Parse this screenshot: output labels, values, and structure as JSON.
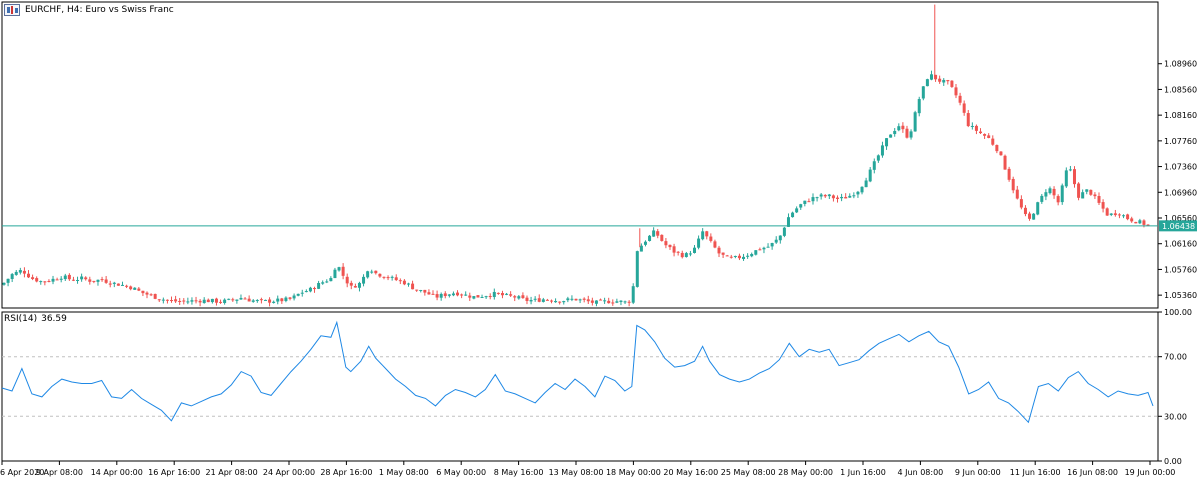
{
  "header": {
    "title": "EURCHF, H4:  Euro vs Swiss Franc"
  },
  "current_price_label": "1.06438",
  "rsi": {
    "name": "RSI(14)",
    "value": "36.59"
  },
  "colors": {
    "bull": "#26a69a",
    "bear": "#ef5350",
    "rsi_line": "#1e88e5",
    "price_line": "#26a69a",
    "frame": "#000000",
    "grid_dash": "#c0c0c0"
  },
  "chart_data": [
    {
      "type": "candlestick",
      "title": "EURCHF, H4:  Euro vs Swiss Franc",
      "ylim": [
        1.0516,
        1.0992
      ],
      "yticks": [
        "1.08960",
        "1.08560",
        "1.08160",
        "1.07760",
        "1.07360",
        "1.06960",
        "1.06560",
        "1.06160",
        "1.05760",
        "1.05360"
      ],
      "current_price": 1.06438,
      "xticks": [
        "6 Apr 2020",
        "9 Apr 08:00",
        "14 Apr 00:00",
        "16 Apr 16:00",
        "21 Apr 08:00",
        "24 Apr 00:00",
        "28 Apr 16:00",
        "1 May 08:00",
        "6 May 00:00",
        "8 May 16:00",
        "13 May 08:00",
        "18 May 00:00",
        "20 May 16:00",
        "25 May 08:00",
        "28 May 00:00",
        "1 Jun 16:00",
        "4 Jun 08:00",
        "9 Jun 00:00",
        "11 Jun 16:00",
        "16 Jun 08:00",
        "19 Jun 00:00"
      ],
      "close_path": [
        [
          0,
          1.0552
        ],
        [
          10,
          1.0568
        ],
        [
          20,
          1.0575
        ],
        [
          30,
          1.0562
        ],
        [
          40,
          1.0557
        ],
        [
          50,
          1.056
        ],
        [
          60,
          1.0565
        ],
        [
          70,
          1.056
        ],
        [
          80,
          1.0562
        ],
        [
          90,
          1.0558
        ],
        [
          100,
          1.056
        ],
        [
          110,
          1.0555
        ],
        [
          120,
          1.0552
        ],
        [
          130,
          1.0548
        ],
        [
          140,
          1.054
        ],
        [
          150,
          1.0535
        ],
        [
          160,
          1.053
        ],
        [
          170,
          1.0527
        ],
        [
          180,
          1.0526
        ],
        [
          190,
          1.0527
        ],
        [
          200,
          1.0528
        ],
        [
          210,
          1.0527
        ],
        [
          220,
          1.0526
        ],
        [
          230,
          1.0528
        ],
        [
          240,
          1.0532
        ],
        [
          250,
          1.0528
        ],
        [
          260,
          1.0526
        ],
        [
          270,
          1.0527
        ],
        [
          280,
          1.0528
        ],
        [
          290,
          1.053
        ],
        [
          300,
          1.054
        ],
        [
          310,
          1.0545
        ],
        [
          320,
          1.0555
        ],
        [
          330,
          1.0562
        ],
        [
          336,
          1.0587
        ],
        [
          340,
          1.0572
        ],
        [
          345,
          1.056
        ],
        [
          350,
          1.0548
        ],
        [
          360,
          1.0555
        ],
        [
          368,
          1.058
        ],
        [
          375,
          1.057
        ],
        [
          385,
          1.0565
        ],
        [
          395,
          1.056
        ],
        [
          405,
          1.0555
        ],
        [
          415,
          1.0545
        ],
        [
          425,
          1.054
        ],
        [
          435,
          1.0533
        ],
        [
          445,
          1.0537
        ],
        [
          455,
          1.054
        ],
        [
          465,
          1.0536
        ],
        [
          475,
          1.0533
        ],
        [
          485,
          1.0536
        ],
        [
          495,
          1.0538
        ],
        [
          505,
          1.0535
        ],
        [
          515,
          1.0533
        ],
        [
          525,
          1.0528
        ],
        [
          535,
          1.0528
        ],
        [
          545,
          1.053
        ],
        [
          555,
          1.0528
        ],
        [
          565,
          1.0528
        ],
        [
          575,
          1.053
        ],
        [
          585,
          1.0527
        ],
        [
          595,
          1.0524
        ],
        [
          605,
          1.0526
        ],
        [
          615,
          1.0527
        ],
        [
          625,
          1.0525
        ],
        [
          632,
          1.0528
        ],
        [
          637,
          1.0605
        ],
        [
          645,
          1.062
        ],
        [
          655,
          1.0635
        ],
        [
          665,
          1.0615
        ],
        [
          675,
          1.0603
        ],
        [
          685,
          1.0597
        ],
        [
          695,
          1.0608
        ],
        [
          703,
          1.0635
        ],
        [
          710,
          1.062
        ],
        [
          720,
          1.06
        ],
        [
          730,
          1.0592
        ],
        [
          740,
          1.0595
        ],
        [
          750,
          1.06
        ],
        [
          760,
          1.0608
        ],
        [
          770,
          1.0612
        ],
        [
          780,
          1.0625
        ],
        [
          790,
          1.066
        ],
        [
          800,
          1.0675
        ],
        [
          810,
          1.0685
        ],
        [
          820,
          1.069
        ],
        [
          830,
          1.069
        ],
        [
          840,
          1.0685
        ],
        [
          850,
          1.069
        ],
        [
          860,
          1.07
        ],
        [
          870,
          1.0725
        ],
        [
          880,
          1.0755
        ],
        [
          890,
          1.0785
        ],
        [
          900,
          1.08
        ],
        [
          910,
          1.078
        ],
        [
          920,
          1.084
        ],
        [
          930,
          1.088
        ],
        [
          940,
          1.087
        ],
        [
          950,
          1.0865
        ],
        [
          960,
          1.084
        ],
        [
          970,
          1.08
        ],
        [
          980,
          1.079
        ],
        [
          990,
          1.078
        ],
        [
          1000,
          1.076
        ],
        [
          1010,
          1.072
        ],
        [
          1020,
          1.068
        ],
        [
          1030,
          1.065
        ],
        [
          1040,
          1.068
        ],
        [
          1050,
          1.0705
        ],
        [
          1060,
          1.068
        ],
        [
          1070,
          1.074
        ],
        [
          1080,
          1.069
        ],
        [
          1090,
          1.07
        ],
        [
          1100,
          1.068
        ],
        [
          1110,
          1.066
        ],
        [
          1120,
          1.0665
        ],
        [
          1130,
          1.0655
        ],
        [
          1140,
          1.065
        ],
        [
          1150,
          1.0645
        ],
        [
          1155,
          1.0643
        ]
      ]
    },
    {
      "type": "line",
      "title": "RSI(14) 36.59",
      "ylim": [
        0,
        100
      ],
      "yticks": [
        "100.00",
        "70.00",
        "30.00",
        "0.00"
      ],
      "levels": [
        70,
        30
      ],
      "series": [
        {
          "name": "RSI(14)",
          "points": [
            [
              0,
              49
            ],
            [
              10,
              47
            ],
            [
              20,
              62
            ],
            [
              30,
              45
            ],
            [
              40,
              43
            ],
            [
              50,
              50
            ],
            [
              60,
              55
            ],
            [
              70,
              53
            ],
            [
              80,
              52
            ],
            [
              90,
              52
            ],
            [
              100,
              54
            ],
            [
              110,
              43
            ],
            [
              120,
              42
            ],
            [
              130,
              48
            ],
            [
              140,
              42
            ],
            [
              150,
              38
            ],
            [
              160,
              34
            ],
            [
              170,
              27
            ],
            [
              180,
              39
            ],
            [
              190,
              37
            ],
            [
              200,
              40
            ],
            [
              210,
              43
            ],
            [
              220,
              45
            ],
            [
              230,
              51
            ],
            [
              240,
              60
            ],
            [
              250,
              57
            ],
            [
              260,
              46
            ],
            [
              270,
              44
            ],
            [
              280,
              52
            ],
            [
              290,
              60
            ],
            [
              300,
              67
            ],
            [
              310,
              75
            ],
            [
              320,
              84
            ],
            [
              330,
              83
            ],
            [
              336,
              93
            ],
            [
              340,
              80
            ],
            [
              345,
              63
            ],
            [
              350,
              60
            ],
            [
              360,
              67
            ],
            [
              368,
              77
            ],
            [
              375,
              69
            ],
            [
              385,
              62
            ],
            [
              395,
              55
            ],
            [
              405,
              50
            ],
            [
              415,
              44
            ],
            [
              425,
              42
            ],
            [
              435,
              37
            ],
            [
              445,
              44
            ],
            [
              455,
              48
            ],
            [
              465,
              46
            ],
            [
              475,
              43
            ],
            [
              485,
              48
            ],
            [
              495,
              58
            ],
            [
              505,
              47
            ],
            [
              515,
              45
            ],
            [
              525,
              42
            ],
            [
              535,
              39
            ],
            [
              545,
              46
            ],
            [
              555,
              52
            ],
            [
              565,
              48
            ],
            [
              575,
              55
            ],
            [
              585,
              50
            ],
            [
              595,
              43
            ],
            [
              605,
              57
            ],
            [
              615,
              54
            ],
            [
              625,
              47
            ],
            [
              632,
              50
            ],
            [
              637,
              91
            ],
            [
              645,
              88
            ],
            [
              655,
              80
            ],
            [
              665,
              69
            ],
            [
              675,
              63
            ],
            [
              685,
              64
            ],
            [
              695,
              67
            ],
            [
              703,
              77
            ],
            [
              710,
              67
            ],
            [
              720,
              58
            ],
            [
              730,
              55
            ],
            [
              740,
              53
            ],
            [
              750,
              55
            ],
            [
              760,
              59
            ],
            [
              770,
              62
            ],
            [
              780,
              68
            ],
            [
              790,
              79
            ],
            [
              800,
              70
            ],
            [
              810,
              75
            ],
            [
              820,
              73
            ],
            [
              830,
              75
            ],
            [
              840,
              64
            ],
            [
              850,
              66
            ],
            [
              860,
              68
            ],
            [
              870,
              74
            ],
            [
              880,
              79
            ],
            [
              890,
              82
            ],
            [
              900,
              85
            ],
            [
              910,
              80
            ],
            [
              920,
              84
            ],
            [
              930,
              87
            ],
            [
              940,
              80
            ],
            [
              950,
              77
            ],
            [
              960,
              63
            ],
            [
              970,
              45
            ],
            [
              980,
              48
            ],
            [
              990,
              53
            ],
            [
              1000,
              42
            ],
            [
              1010,
              39
            ],
            [
              1020,
              33
            ],
            [
              1030,
              26
            ],
            [
              1040,
              50
            ],
            [
              1050,
              52
            ],
            [
              1060,
              47
            ],
            [
              1070,
              56
            ],
            [
              1080,
              60
            ],
            [
              1090,
              52
            ],
            [
              1100,
              48
            ],
            [
              1110,
              43
            ],
            [
              1120,
              47
            ],
            [
              1130,
              45
            ],
            [
              1140,
              44
            ],
            [
              1150,
              46
            ],
            [
              1155,
              37
            ]
          ]
        }
      ]
    }
  ]
}
